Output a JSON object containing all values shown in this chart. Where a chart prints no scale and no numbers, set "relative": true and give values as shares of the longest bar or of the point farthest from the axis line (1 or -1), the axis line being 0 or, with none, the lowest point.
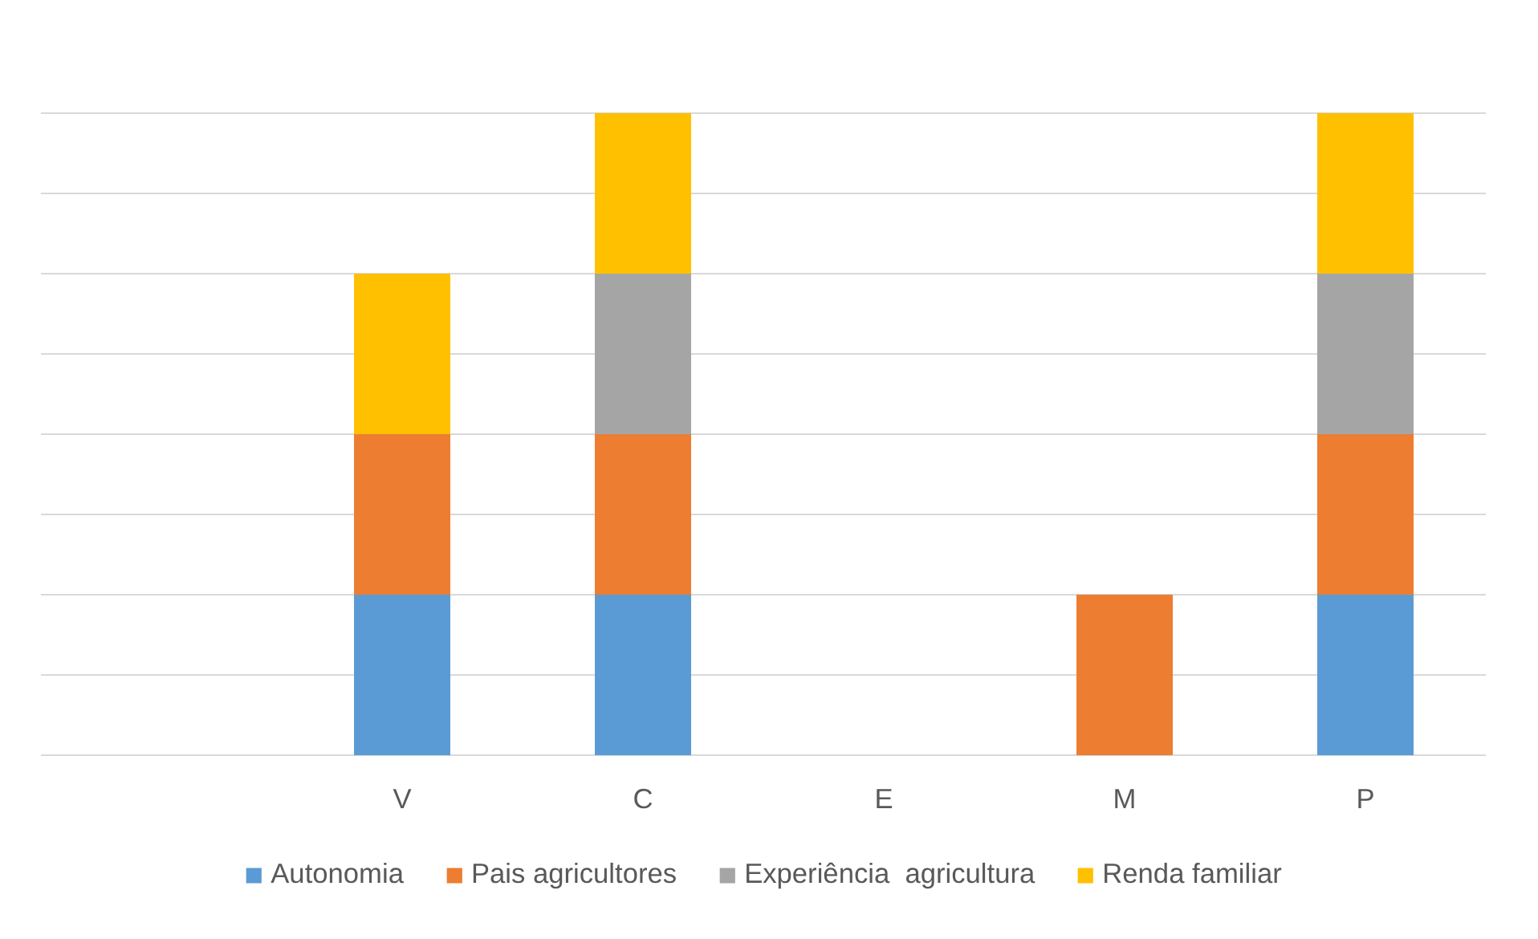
{
  "chart_data": {
    "type": "bar",
    "stacked": true,
    "relative": true,
    "grid": "y",
    "legend": "bottom",
    "categories": [
      null,
      "V",
      "C",
      "E",
      "M",
      "P"
    ],
    "series": [
      {
        "name": "Autonomia",
        "color": "#5b9bd5",
        "values": [
          0,
          0.25,
          0.25,
          0,
          0,
          0.25
        ]
      },
      {
        "name": "Pais agricultores",
        "color": "#ed7d31",
        "values": [
          0,
          0.25,
          0.25,
          0,
          0.25,
          0.25
        ]
      },
      {
        "name": "Experiência  agricultura",
        "color": "#a5a5a5",
        "values": [
          0,
          0,
          0.25,
          0,
          0,
          0.25
        ]
      },
      {
        "name": "Renda familiar",
        "color": "#ffc000",
        "values": [
          0,
          0.25,
          0.25,
          0,
          0,
          0.25
        ]
      }
    ]
  }
}
